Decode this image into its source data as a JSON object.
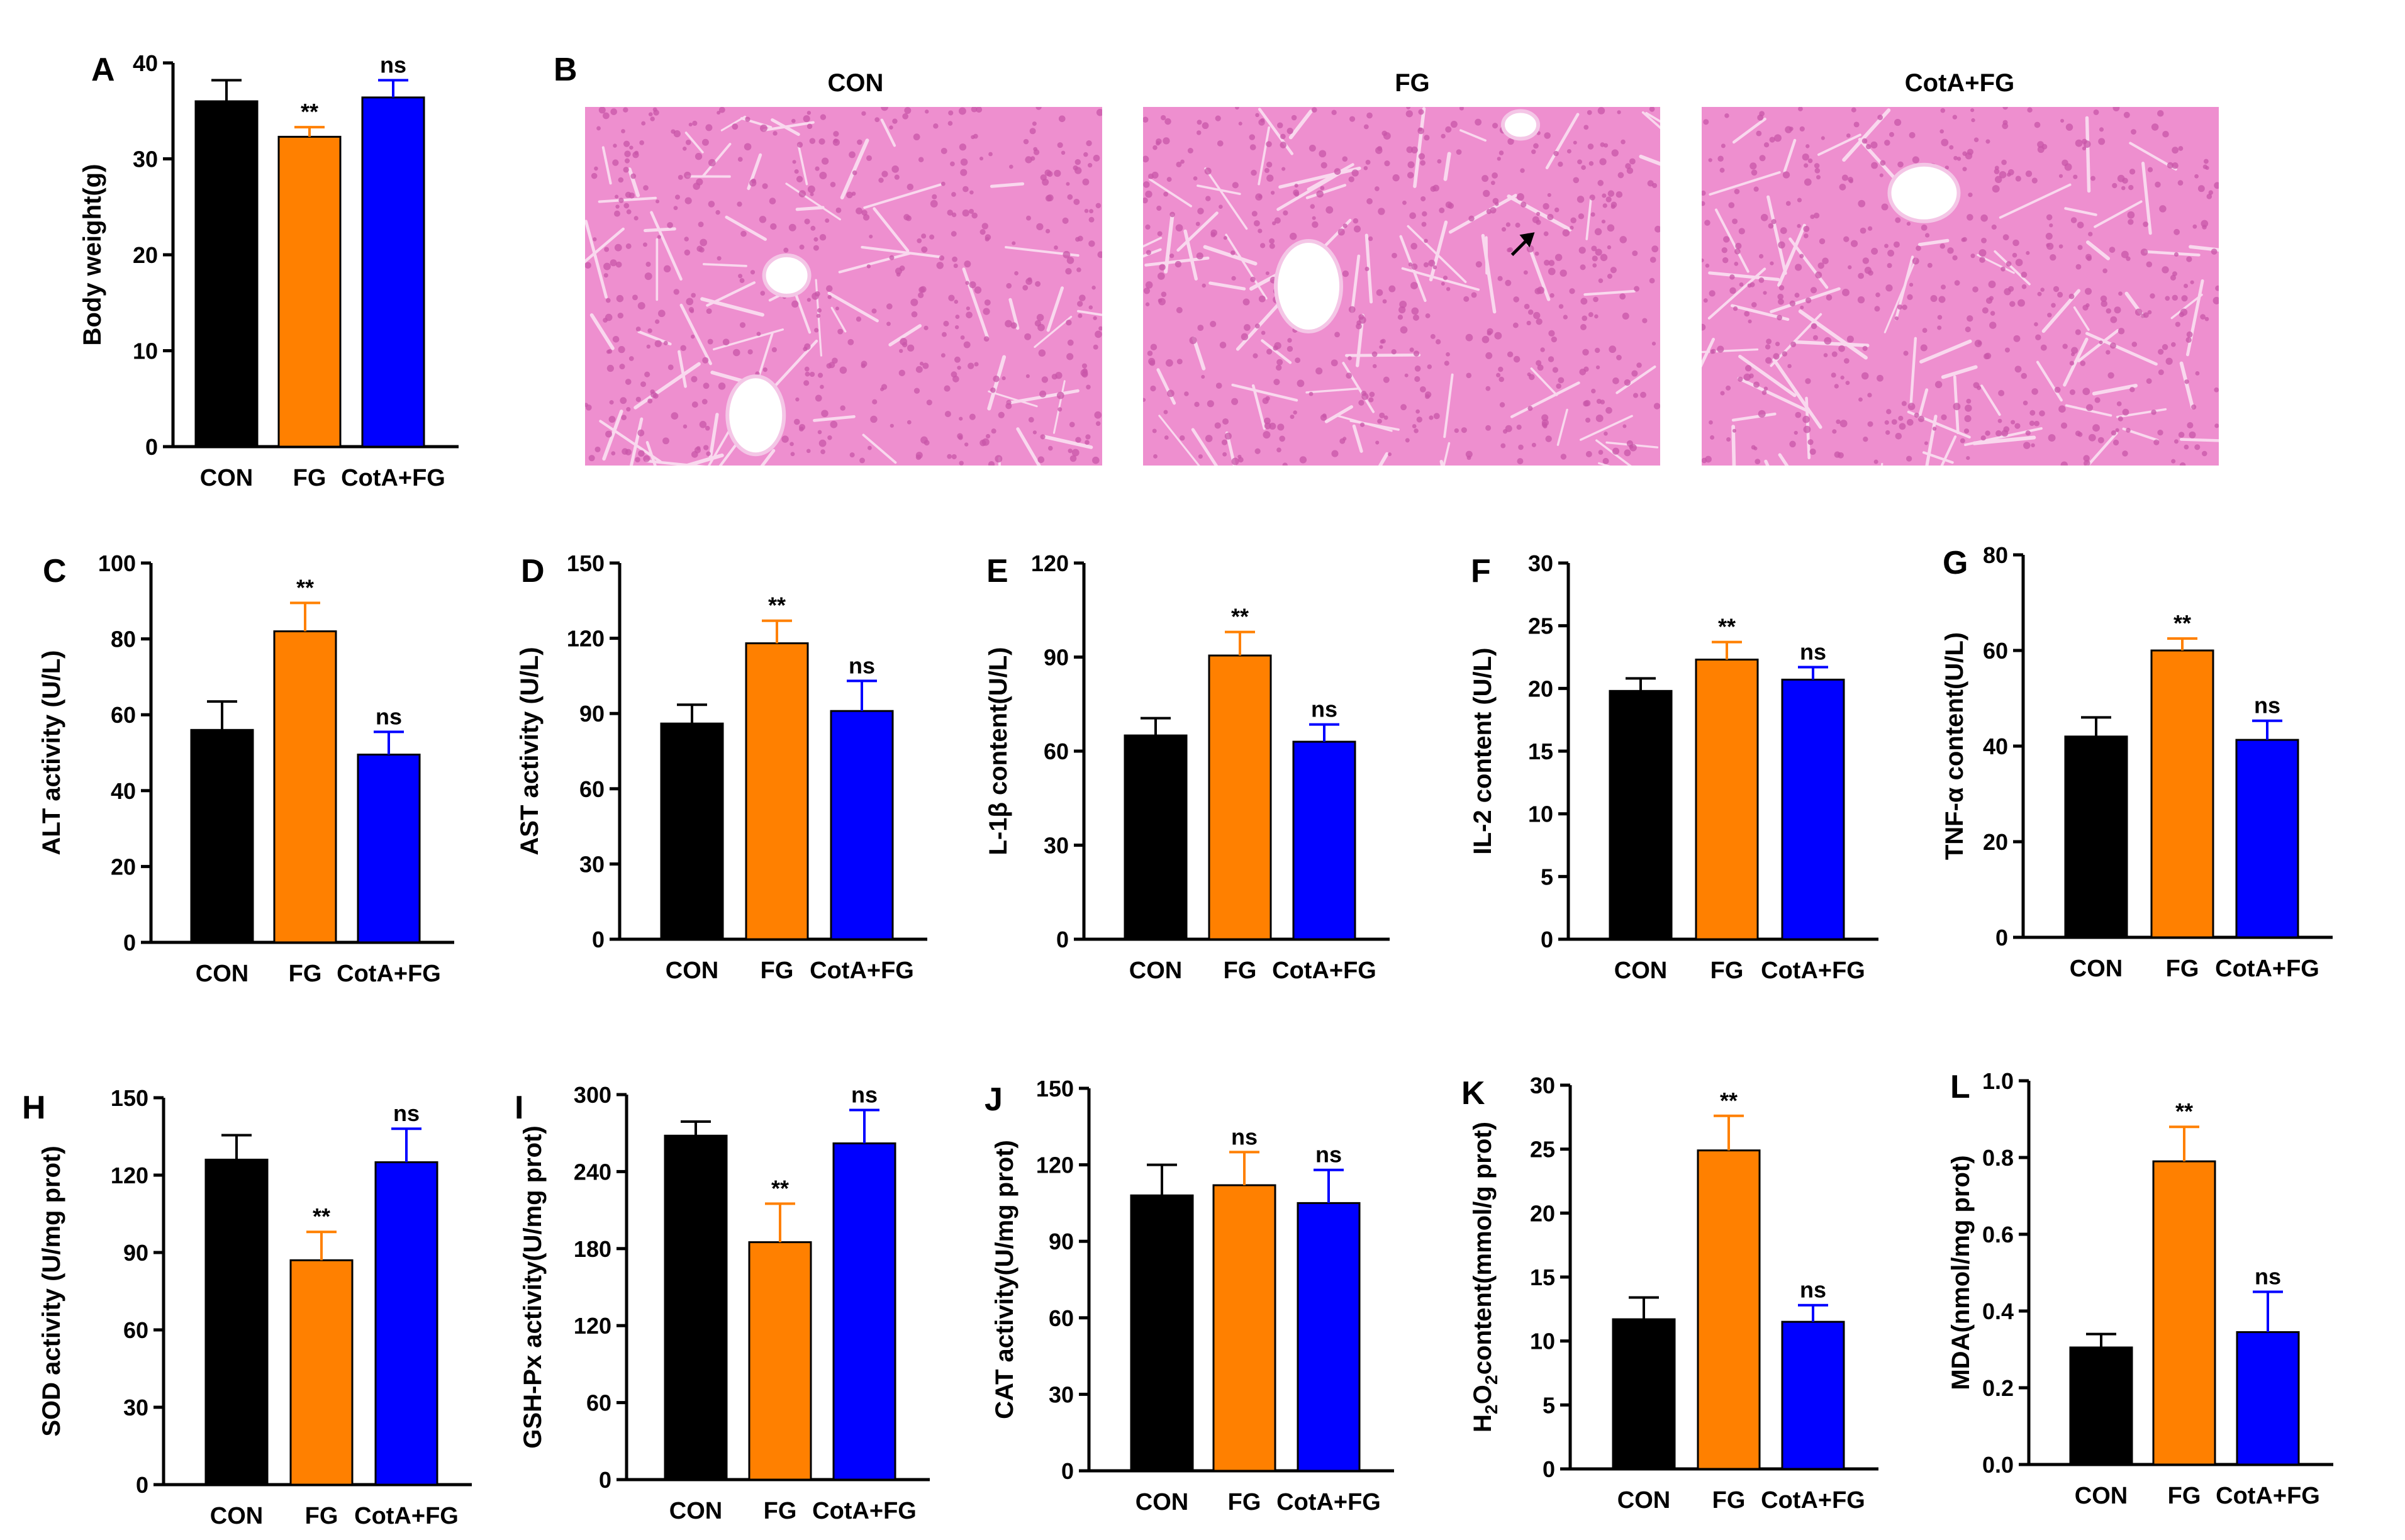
{
  "figure": {
    "panel_b": {
      "label": "B",
      "images": [
        {
          "title": "CON"
        },
        {
          "title": "FG"
        },
        {
          "title": "CotA+FG"
        }
      ]
    }
  },
  "colors": {
    "CON": "#000000",
    "FG": "#ff8000",
    "CotA+FG": "#0000ff",
    "tissue": "#ee8fcf",
    "tissue_dark": "#c855a8"
  },
  "chart_data": [
    {
      "label": "A",
      "type": "bar",
      "ylabel": "Body weight(g)",
      "ylim": [
        0,
        40
      ],
      "yticks": [
        0,
        10,
        20,
        30,
        40
      ],
      "categories": [
        "CON",
        "FG",
        "CotA+FG"
      ],
      "values": [
        36,
        32.3,
        36.4
      ],
      "errors": [
        2.2,
        1.0,
        1.8
      ],
      "annotations": [
        "",
        "**",
        "ns"
      ]
    },
    {
      "label": "C",
      "type": "bar",
      "ylabel": "ALT activity (U/L)",
      "ylim": [
        0,
        100
      ],
      "yticks": [
        0,
        20,
        40,
        60,
        80,
        100
      ],
      "categories": [
        "CON",
        "FG",
        "CotA+FG"
      ],
      "values": [
        56,
        82,
        49.5
      ],
      "errors": [
        7.5,
        7.5,
        6
      ],
      "annotations": [
        "",
        "**",
        "ns"
      ]
    },
    {
      "label": "D",
      "type": "bar",
      "ylabel": "AST activity (U/L)",
      "ylim": [
        0,
        150
      ],
      "yticks": [
        0,
        30,
        60,
        90,
        120,
        150
      ],
      "categories": [
        "CON",
        "FG",
        "CotA+FG"
      ],
      "values": [
        86,
        118,
        91
      ],
      "errors": [
        7.5,
        9,
        12
      ],
      "annotations": [
        "",
        "**",
        "ns"
      ]
    },
    {
      "label": "E",
      "type": "bar",
      "ylabel": "L-1β content(U/L)",
      "ylim": [
        0,
        120
      ],
      "yticks": [
        0,
        30,
        60,
        90,
        120
      ],
      "categories": [
        "CON",
        "FG",
        "CotA+FG"
      ],
      "values": [
        65,
        90.5,
        63
      ],
      "errors": [
        5.5,
        7.5,
        5.5
      ],
      "annotations": [
        "",
        "**",
        "ns"
      ]
    },
    {
      "label": "F",
      "type": "bar",
      "ylabel": "IL-2 content (U/L)",
      "ylim": [
        0,
        30
      ],
      "yticks": [
        0,
        5,
        10,
        15,
        20,
        25,
        30
      ],
      "categories": [
        "CON",
        "FG",
        "CotA+FG"
      ],
      "values": [
        19.8,
        22.3,
        20.7
      ],
      "errors": [
        1.0,
        1.4,
        1.0
      ],
      "annotations": [
        "",
        "**",
        "ns"
      ]
    },
    {
      "label": "G",
      "type": "bar",
      "ylabel": "TNF-α content(U/L)",
      "ylim": [
        0,
        80
      ],
      "yticks": [
        0,
        20,
        40,
        60,
        80
      ],
      "categories": [
        "CON",
        "FG",
        "CotA+FG"
      ],
      "values": [
        42,
        60,
        41.3
      ],
      "errors": [
        4,
        2.5,
        4
      ],
      "annotations": [
        "",
        "**",
        "ns"
      ]
    },
    {
      "label": "H",
      "type": "bar",
      "ylabel": "SOD activity (U/mg prot)",
      "ylim": [
        0,
        150
      ],
      "yticks": [
        0,
        30,
        60,
        90,
        120,
        150
      ],
      "categories": [
        "CON",
        "FG",
        "CotA+FG"
      ],
      "values": [
        126,
        87,
        125
      ],
      "errors": [
        9.5,
        11,
        13
      ],
      "annotations": [
        "",
        "**",
        "ns"
      ]
    },
    {
      "label": "I",
      "type": "bar",
      "ylabel": "GSH-Px activity(U/mg prot)",
      "ylim": [
        0,
        300
      ],
      "yticks": [
        0,
        60,
        120,
        180,
        240,
        300
      ],
      "categories": [
        "CON",
        "FG",
        "CotA+FG"
      ],
      "values": [
        268,
        185,
        262
      ],
      "errors": [
        11,
        30,
        26
      ],
      "annotations": [
        "",
        "**",
        "ns"
      ]
    },
    {
      "label": "J",
      "type": "bar",
      "ylabel": "CAT activity(U/mg prot)",
      "ylim": [
        0,
        150
      ],
      "yticks": [
        0,
        30,
        60,
        90,
        120,
        150
      ],
      "categories": [
        "CON",
        "FG",
        "CotA+FG"
      ],
      "values": [
        108,
        112,
        105
      ],
      "errors": [
        12,
        13,
        13
      ],
      "annotations": [
        "",
        "ns",
        "ns"
      ]
    },
    {
      "label": "K",
      "type": "bar",
      "ylabel": "H2O2 content(mmol/g prot)",
      "ylim": [
        0,
        30
      ],
      "yticks": [
        0,
        5,
        10,
        15,
        20,
        25,
        30
      ],
      "categories": [
        "CON",
        "FG",
        "CotA+FG"
      ],
      "values": [
        11.7,
        24.9,
        11.5
      ],
      "errors": [
        1.7,
        2.7,
        1.3
      ],
      "annotations": [
        "",
        "**",
        "ns"
      ]
    },
    {
      "label": "L",
      "type": "bar",
      "ylabel": "MDA(nmol/mg prot)",
      "ylim": [
        0,
        1.0
      ],
      "yticks": [
        0.0,
        0.2,
        0.4,
        0.6,
        0.8,
        1.0
      ],
      "categories": [
        "CON",
        "FG",
        "CotA+FG"
      ],
      "values": [
        0.305,
        0.79,
        0.345
      ],
      "errors": [
        0.035,
        0.09,
        0.105
      ],
      "annotations": [
        "",
        "**",
        "ns"
      ]
    }
  ]
}
